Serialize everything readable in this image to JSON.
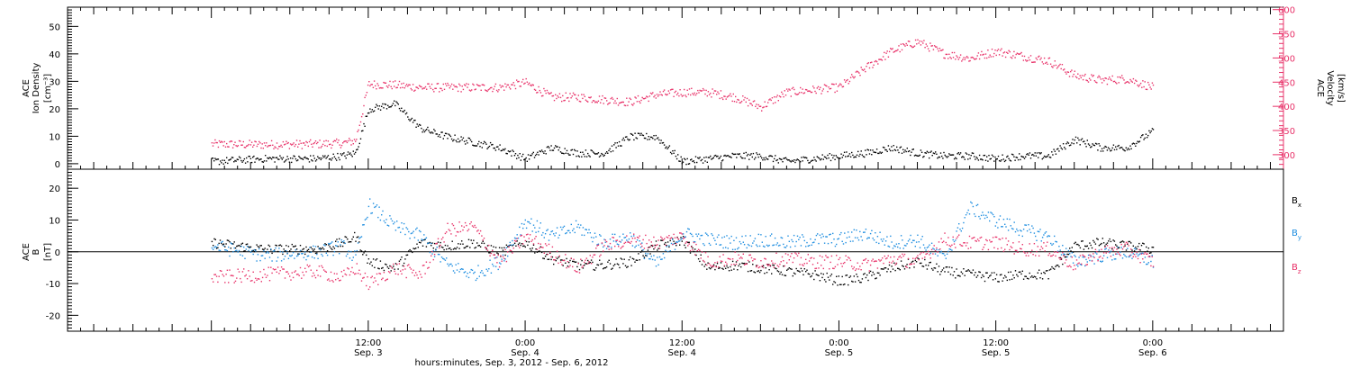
{
  "colors": {
    "black": "#000000",
    "pink": "#e8336a",
    "blue": "#1f8ee0"
  },
  "x_axis": {
    "label": "hours:minutes, Sep.  3, 2012 - Sep.  6, 2012",
    "ticks": [
      {
        "t": 12,
        "time": "12:00",
        "date": "Sep. 3"
      },
      {
        "t": 24,
        "time": "0:00",
        "date": "Sep. 4"
      },
      {
        "t": 36,
        "time": "12:00",
        "date": "Sep. 4"
      },
      {
        "t": 48,
        "time": "0:00",
        "date": "Sep. 5"
      },
      {
        "t": 60,
        "time": "12:00",
        "date": "Sep. 5"
      },
      {
        "t": 72,
        "time": "0:00",
        "date": "Sep. 6"
      }
    ]
  },
  "chart_data": [
    {
      "type": "scatter",
      "title": "",
      "ylabel": [
        "ACE",
        "Ion Density",
        "[cm⁻³]"
      ],
      "ylim": [
        -2,
        57
      ],
      "yticks": [
        0,
        10,
        20,
        30,
        40,
        50
      ],
      "y2label": [
        "ACE",
        "Velocity",
        "[km/s]"
      ],
      "y2lim": [
        270,
        605
      ],
      "y2ticks": [
        300,
        350,
        400,
        450,
        500,
        550,
        600
      ],
      "series": [
        {
          "name": "Ion Density",
          "axis": "left",
          "color": "#000000",
          "x": [
            0,
            4,
            8,
            10,
            11,
            12,
            14,
            16,
            18,
            20,
            22,
            24,
            26,
            28,
            30,
            32,
            34,
            36,
            38,
            40,
            42,
            44,
            46,
            48,
            50,
            52,
            54,
            56,
            58,
            60,
            62,
            64,
            66,
            68,
            70,
            72
          ],
          "y": [
            1,
            2,
            2,
            3,
            4,
            20,
            22,
            13,
            10,
            8,
            6,
            2,
            6,
            4,
            4,
            10,
            10,
            1,
            2,
            3,
            3,
            1,
            2,
            3,
            4,
            6,
            4,
            3,
            3,
            2,
            3,
            3,
            9,
            6,
            6,
            12
          ]
        },
        {
          "name": "Velocity",
          "axis": "right",
          "color": "#e8336a",
          "x": [
            0,
            4,
            8,
            10,
            11,
            12,
            14,
            16,
            18,
            20,
            22,
            24,
            26,
            28,
            30,
            32,
            34,
            36,
            38,
            40,
            42,
            44,
            46,
            48,
            50,
            52,
            54,
            56,
            58,
            60,
            62,
            64,
            66,
            68,
            70,
            72
          ],
          "y": [
            323,
            322,
            323,
            325,
            330,
            447,
            445,
            440,
            440,
            440,
            440,
            450,
            420,
            420,
            415,
            410,
            425,
            430,
            430,
            420,
            400,
            430,
            435,
            440,
            480,
            515,
            535,
            510,
            500,
            515,
            505,
            495,
            465,
            455,
            458,
            440
          ]
        }
      ]
    },
    {
      "type": "scatter",
      "title": "",
      "ylabel": [
        "ACE",
        "B",
        "[nT]"
      ],
      "ylim": [
        -25,
        26
      ],
      "yticks": [
        -20,
        -10,
        0,
        10,
        20
      ],
      "zero_line": true,
      "legend_position": "right",
      "series": [
        {
          "name": "Bx",
          "label_main": "B",
          "label_sub": "x",
          "color": "#000000",
          "x": [
            0,
            4,
            8,
            10,
            11,
            12,
            14,
            16,
            18,
            20,
            22,
            24,
            26,
            28,
            30,
            32,
            34,
            36,
            38,
            40,
            42,
            44,
            46,
            48,
            50,
            52,
            54,
            56,
            58,
            60,
            62,
            64,
            66,
            68,
            70,
            72
          ],
          "y": [
            3,
            1,
            1,
            3,
            5,
            -3,
            -5,
            3,
            2,
            3,
            0,
            3,
            -2,
            -4,
            -4,
            -3,
            2,
            4,
            -5,
            -4,
            -5,
            -6,
            -7,
            -9,
            -8,
            -5,
            -3,
            -6,
            -7,
            -8,
            -7,
            -7,
            2,
            3,
            2,
            1
          ]
        },
        {
          "name": "By",
          "label_main": "B",
          "label_sub": "y",
          "color": "#1f8ee0",
          "x": [
            0,
            4,
            8,
            10,
            11,
            12,
            14,
            16,
            18,
            20,
            22,
            24,
            26,
            28,
            30,
            32,
            34,
            36,
            38,
            40,
            42,
            44,
            46,
            48,
            50,
            52,
            54,
            56,
            58,
            60,
            62,
            64,
            66,
            68,
            70,
            72
          ],
          "y": [
            2,
            -1,
            0,
            2,
            -2,
            15,
            8,
            5,
            -4,
            -7,
            -3,
            10,
            5,
            8,
            3,
            5,
            -4,
            6,
            4,
            3,
            4,
            3,
            4,
            4,
            6,
            3,
            4,
            -2,
            14,
            10,
            7,
            5,
            -3,
            -1,
            0,
            -3
          ]
        },
        {
          "name": "Bz",
          "label_main": "B",
          "label_sub": "z",
          "color": "#e8336a",
          "x": [
            0,
            4,
            8,
            10,
            11,
            12,
            14,
            16,
            18,
            20,
            22,
            24,
            26,
            28,
            30,
            32,
            34,
            36,
            38,
            40,
            42,
            44,
            46,
            48,
            50,
            52,
            54,
            56,
            58,
            60,
            62,
            64,
            66,
            68,
            70,
            72
          ],
          "y": [
            -8,
            -7,
            -6,
            -8,
            -5,
            -10,
            -5,
            -7,
            7,
            8,
            -3,
            5,
            0,
            -5,
            2,
            4,
            3,
            5,
            -3,
            -2,
            -3,
            -2,
            -3,
            -3,
            -4,
            -2,
            -3,
            4,
            3,
            3,
            1,
            1,
            -4,
            0,
            1,
            -3
          ]
        }
      ]
    }
  ]
}
